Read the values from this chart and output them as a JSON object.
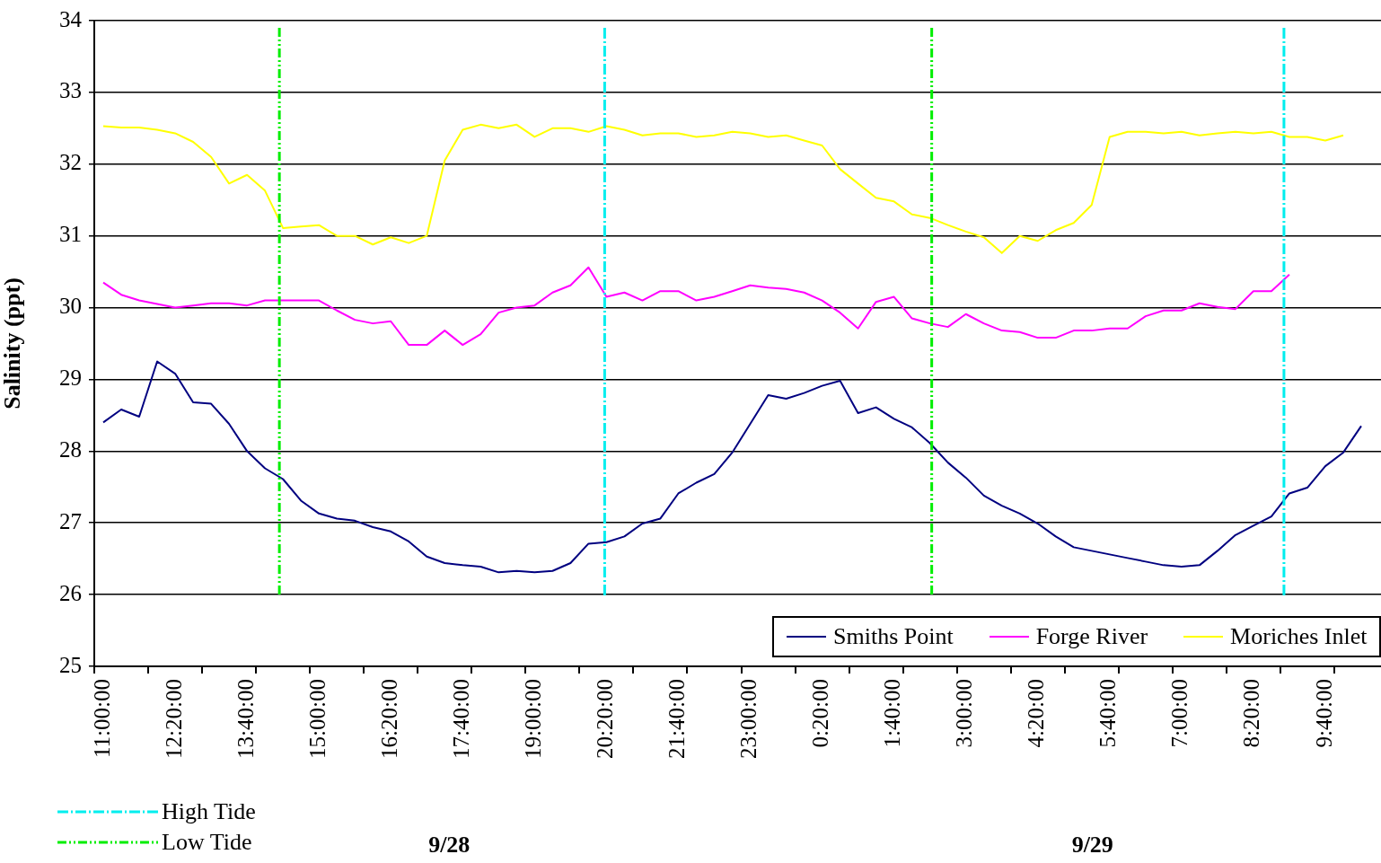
{
  "chart_data": {
    "type": "line",
    "ylabel": "Salinity (ppt)",
    "x": [
      "--09-28T11:00",
      "--09-28T11:20",
      "--09-28T11:40",
      "--09-28T12:00",
      "--09-28T12:20",
      "--09-28T12:40",
      "--09-28T13:00",
      "--09-28T13:20",
      "--09-28T13:40",
      "--09-28T14:00",
      "--09-28T14:20",
      "--09-28T14:40",
      "--09-28T15:00",
      "--09-28T15:20",
      "--09-28T15:40",
      "--09-28T16:00",
      "--09-28T16:20",
      "--09-28T16:40",
      "--09-28T17:00",
      "--09-28T17:20",
      "--09-28T17:40",
      "--09-28T18:00",
      "--09-28T18:20",
      "--09-28T18:40",
      "--09-28T19:00",
      "--09-28T19:20",
      "--09-28T19:40",
      "--09-28T20:00",
      "--09-28T20:20",
      "--09-28T20:40",
      "--09-28T21:00",
      "--09-28T21:20",
      "--09-28T21:40",
      "--09-28T22:00",
      "--09-28T22:20",
      "--09-28T22:40",
      "--09-28T23:00",
      "--09-28T23:20",
      "--09-28T23:40",
      "--09-29T00:00",
      "--09-29T00:20",
      "--09-29T00:40",
      "--09-29T01:00",
      "--09-29T01:20",
      "--09-29T01:40",
      "--09-29T02:00",
      "--09-29T02:20",
      "--09-29T02:40",
      "--09-29T03:00",
      "--09-29T03:20",
      "--09-29T03:40",
      "--09-29T04:00",
      "--09-29T04:20",
      "--09-29T04:40",
      "--09-29T05:00",
      "--09-29T05:20",
      "--09-29T05:40",
      "--09-29T06:00",
      "--09-29T06:20",
      "--09-29T06:40",
      "--09-29T07:00",
      "--09-29T07:20",
      "--09-29T07:40",
      "--09-29T08:00",
      "--09-29T08:20",
      "--09-29T08:40",
      "--09-29T09:00",
      "--09-29T09:20",
      "--09-29T09:40",
      "--09-29T10:00",
      "--09-29T10:20"
    ],
    "series": [
      {
        "name": "Smiths Point",
        "color": "#000080",
        "values": [
          28.4,
          28.58,
          28.48,
          29.25,
          29.08,
          28.68,
          28.66,
          28.38,
          28.0,
          27.76,
          27.61,
          27.31,
          27.13,
          27.06,
          27.03,
          26.94,
          26.88,
          26.74,
          26.53,
          26.44,
          26.41,
          26.39,
          26.31,
          26.33,
          26.31,
          26.33,
          26.44,
          26.71,
          26.73,
          26.81,
          26.99,
          27.06,
          27.41,
          27.56,
          27.68,
          27.98,
          28.38,
          28.78,
          28.73,
          28.81,
          28.91,
          28.98,
          28.53,
          28.61,
          28.45,
          28.33,
          28.11,
          27.84,
          27.63,
          27.38,
          27.24,
          27.13,
          26.99,
          26.81,
          26.66,
          26.61,
          26.56,
          26.51,
          26.46,
          26.41,
          26.39,
          26.41,
          26.61,
          26.83,
          26.96,
          27.09,
          27.41,
          27.49,
          27.79,
          27.98,
          28.35
        ]
      },
      {
        "name": "Forge River",
        "color": "#ff00ff",
        "values": [
          30.35,
          30.18,
          30.1,
          30.05,
          30.0,
          30.03,
          30.06,
          30.06,
          30.03,
          30.1,
          30.1,
          30.1,
          30.1,
          29.96,
          29.83,
          29.78,
          29.81,
          29.48,
          29.48,
          29.68,
          29.48,
          29.63,
          29.93,
          30.0,
          30.03,
          30.21,
          30.31,
          30.56,
          30.15,
          30.21,
          30.1,
          30.23,
          30.23,
          30.1,
          30.15,
          30.23,
          30.31,
          30.28,
          30.26,
          30.21,
          30.1,
          29.93,
          29.71,
          30.08,
          30.15,
          29.85,
          29.78,
          29.73,
          29.91,
          29.78,
          29.68,
          29.66,
          29.58,
          29.58,
          29.68,
          29.68,
          29.71,
          29.71,
          29.88,
          29.96,
          29.96,
          30.06,
          30.01,
          29.98,
          30.23,
          30.23,
          30.46,
          null,
          null,
          null,
          null
        ]
      },
      {
        "name": "Moriches Inlet",
        "color": "#ffff00",
        "values": [
          32.53,
          32.51,
          32.51,
          32.48,
          32.43,
          32.31,
          32.1,
          31.73,
          31.85,
          31.63,
          31.11,
          31.13,
          31.15,
          31.0,
          31.0,
          30.88,
          30.98,
          30.9,
          31.0,
          32.05,
          32.48,
          32.55,
          32.5,
          32.55,
          32.38,
          32.5,
          32.5,
          32.45,
          32.53,
          32.48,
          32.4,
          32.43,
          32.43,
          32.38,
          32.4,
          32.45,
          32.43,
          32.38,
          32.4,
          32.33,
          32.26,
          31.93,
          31.73,
          31.53,
          31.48,
          31.3,
          31.25,
          31.15,
          31.06,
          30.98,
          30.76,
          31.0,
          30.93,
          31.08,
          31.18,
          31.43,
          32.38,
          32.45,
          32.45,
          32.43,
          32.45,
          32.4,
          32.43,
          32.45,
          32.43,
          32.45,
          32.38,
          32.38,
          32.33,
          32.4,
          null
        ]
      }
    ],
    "xlim": [
      "--09-28T10:50",
      "--09-29T10:42"
    ],
    "xticks": [
      {
        "value": "--09-28T10:50",
        "label": null
      },
      {
        "value": "--09-28T11:00",
        "label": "11:00:00"
      },
      {
        "value": "--09-28T11:50",
        "label": null
      },
      {
        "value": "--09-28T12:20",
        "label": "12:20:00"
      },
      {
        "value": "--09-28T12:50",
        "label": null
      },
      {
        "value": "--09-28T13:40",
        "label": "13:40:00"
      },
      {
        "value": "--09-28T13:50",
        "label": null
      },
      {
        "value": "--09-28T14:50",
        "label": null
      },
      {
        "value": "--09-28T15:00",
        "label": "15:00:00"
      },
      {
        "value": "--09-28T15:50",
        "label": null
      },
      {
        "value": "--09-28T16:20",
        "label": "16:20:00"
      },
      {
        "value": "--09-28T16:50",
        "label": null
      },
      {
        "value": "--09-28T17:40",
        "label": "17:40:00"
      },
      {
        "value": "--09-28T17:50",
        "label": null
      },
      {
        "value": "--09-28T18:50",
        "label": null
      },
      {
        "value": "--09-28T19:00",
        "label": "19:00:00"
      },
      {
        "value": "--09-28T19:50",
        "label": null
      },
      {
        "value": "--09-28T20:20",
        "label": "20:20:00"
      },
      {
        "value": "--09-28T20:50",
        "label": null
      },
      {
        "value": "--09-28T21:40",
        "label": "21:40:00"
      },
      {
        "value": "--09-28T21:50",
        "label": null
      },
      {
        "value": "--09-28T22:50",
        "label": null
      },
      {
        "value": "--09-28T23:00",
        "label": "23:00:00"
      },
      {
        "value": "--09-28T23:50",
        "label": null
      },
      {
        "value": "--09-29T00:20",
        "label": "0:20:00"
      },
      {
        "value": "--09-29T00:50",
        "label": null
      },
      {
        "value": "--09-29T01:40",
        "label": "1:40:00"
      },
      {
        "value": "--09-29T01:50",
        "label": null
      },
      {
        "value": "--09-29T02:50",
        "label": null
      },
      {
        "value": "--09-29T03:00",
        "label": "3:00:00"
      },
      {
        "value": "--09-29T03:50",
        "label": null
      },
      {
        "value": "--09-29T04:20",
        "label": "4:20:00"
      },
      {
        "value": "--09-29T04:50",
        "label": null
      },
      {
        "value": "--09-29T05:40",
        "label": "5:40:00"
      },
      {
        "value": "--09-29T05:50",
        "label": null
      },
      {
        "value": "--09-29T06:50",
        "label": null
      },
      {
        "value": "--09-29T07:00",
        "label": "7:00:00"
      },
      {
        "value": "--09-29T07:50",
        "label": null
      },
      {
        "value": "--09-29T08:20",
        "label": "8:20:00"
      },
      {
        "value": "--09-29T08:50",
        "label": null
      },
      {
        "value": "--09-29T09:40",
        "label": "9:40:00"
      },
      {
        "value": "--09-29T09:50",
        "label": null
      }
    ],
    "ylim": [
      25,
      34
    ],
    "yticks": [
      25,
      26,
      27,
      28,
      29,
      30,
      31,
      32,
      33,
      34
    ],
    "grid": "y",
    "legend": "bottom right",
    "marker": "none",
    "line_style": "solid",
    "ref_lines": [
      {
        "axis": "x",
        "value": "--09-28T14:16",
        "label": "Low Tide",
        "color": "#00ee00",
        "line_style": "dashed"
      },
      {
        "axis": "x",
        "value": "--09-28T20:18",
        "label": "High Tide",
        "color": "#00eeee",
        "line_style": "dotted"
      },
      {
        "axis": "x",
        "value": "--09-29T02:22",
        "color": "#00ee00",
        "line_style": "dashed"
      },
      {
        "axis": "x",
        "value": "--09-29T08:54",
        "color": "#00eeee",
        "line_style": "dotted"
      }
    ],
    "annotations": [
      "9/28",
      "9/29"
    ]
  }
}
